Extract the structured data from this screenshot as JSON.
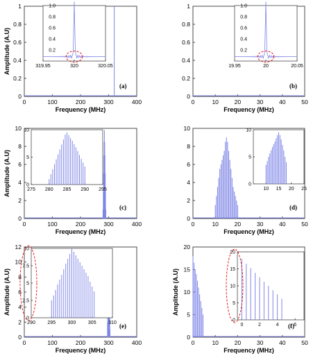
{
  "figure": {
    "colors": {
      "series": "#7f86e6",
      "annotation": "#e21b1b",
      "axis": "#4a4a4a"
    }
  },
  "chart_data": [
    {
      "panel": "(a)",
      "type": "bar",
      "xlabel": "Frequency (MHz)",
      "ylabel": "Amplitude (A.U)",
      "xlim": [
        0,
        400
      ],
      "ylim": [
        0,
        1.0
      ],
      "xticks": [
        0,
        100,
        200,
        300,
        400
      ],
      "yticks": [
        0,
        0.2,
        0.4,
        0.6,
        0.8,
        1.0
      ],
      "x": [
        320
      ],
      "values": [
        1.0
      ],
      "inset": {
        "type": "line",
        "xlim": [
          319.95,
          320.05
        ],
        "ylim": [
          0,
          1.0
        ],
        "xticks": [
          319.95,
          320,
          320.05
        ],
        "xtick_labels": [
          "319.95",
          "320",
          "320.05"
        ],
        "yticks": [
          0.2,
          0.4,
          0.6,
          0.8,
          1.0
        ],
        "ytick_labels": [
          "0.2",
          "0.4",
          "0.6",
          "0.8",
          "1.0"
        ],
        "peak_x": 320,
        "peak_value": 0.95,
        "highlight": "ellipse around peak base"
      }
    },
    {
      "panel": "(b)",
      "type": "bar",
      "xlabel": "Frequency (MHz)",
      "ylabel": "",
      "xlim": [
        0,
        50
      ],
      "ylim": [
        0,
        1.0
      ],
      "xticks": [
        0,
        10,
        20,
        30,
        40,
        50
      ],
      "yticks": [
        0,
        0.2,
        0.4,
        0.6,
        0.8,
        1.0
      ],
      "x": [],
      "values": [],
      "inset": {
        "type": "line",
        "xlim": [
          19.95,
          20.05
        ],
        "ylim": [
          0,
          1.0
        ],
        "xticks": [
          19.95,
          20,
          20.05
        ],
        "xtick_labels": [
          "19.95",
          "20",
          "20.05"
        ],
        "yticks": [
          0.2,
          0.4,
          0.6,
          0.8,
          1.0
        ],
        "ytick_labels": [
          "0.2",
          "0.4",
          "0.6",
          "0.8",
          "1.0"
        ],
        "peak_x": 20,
        "peak_value": 0.95,
        "highlight": "ellipse around peak base"
      }
    },
    {
      "panel": "(c)",
      "type": "bar",
      "xlabel": "Frequency (MHz)",
      "ylabel": "Amplitude (A.U)",
      "xlim": [
        0,
        400
      ],
      "ylim": [
        0,
        10
      ],
      "xticks": [
        0,
        100,
        200,
        300,
        400
      ],
      "yticks": [
        0,
        2,
        4,
        6,
        8,
        10
      ],
      "x": [
        280,
        281,
        282,
        283,
        284,
        285,
        286,
        287,
        288,
        289,
        290
      ],
      "values": [
        1,
        3,
        5,
        7,
        8.5,
        9.8,
        8.5,
        7,
        5,
        3,
        1
      ],
      "inset": {
        "type": "bar",
        "xlim": [
          275,
          295
        ],
        "ylim": [
          0,
          10
        ],
        "xticks": [
          275,
          280,
          285,
          290,
          295
        ],
        "xtick_labels": [
          "275",
          "280",
          "285",
          "290",
          "295"
        ],
        "yticks": [
          0,
          5,
          10
        ],
        "ytick_labels": [
          "0",
          "5",
          "10"
        ],
        "x": [
          280,
          280.5,
          281,
          281.5,
          282,
          282.5,
          283,
          283.5,
          284,
          284.5,
          285,
          285.5,
          286,
          286.5,
          287,
          287.5,
          288,
          288.5,
          289,
          289.5,
          290
        ],
        "values": [
          1.0,
          1.9,
          2.8,
          3.7,
          4.6,
          5.5,
          6.4,
          7.3,
          8.2,
          9.1,
          9.5,
          9.0,
          8.5,
          8.0,
          7.4,
          6.8,
          6.1,
          5.4,
          4.7,
          4.0,
          3.3
        ]
      }
    },
    {
      "panel": "(d)",
      "type": "bar",
      "xlabel": "Frequency (MHz)",
      "ylabel": "",
      "xlim": [
        0,
        50
      ],
      "ylim": [
        0,
        10
      ],
      "xticks": [
        0,
        10,
        20,
        30,
        40,
        50
      ],
      "yticks": [
        0,
        2,
        4,
        6,
        8,
        10
      ],
      "x": [
        10,
        10.5,
        11,
        11.5,
        12,
        12.5,
        13,
        13.5,
        14,
        14.5,
        15,
        15.5,
        16,
        16.5,
        17,
        17.5,
        18,
        18.5,
        19,
        19.5,
        20
      ],
      "values": [
        1.5,
        2.5,
        3.5,
        4.5,
        5.5,
        6.0,
        6.5,
        7.0,
        7.5,
        8.5,
        9.0,
        8.5,
        7.5,
        6.5,
        5.5,
        4.5,
        3.5,
        3.0,
        2.5,
        2.0,
        1.5
      ],
      "inset": {
        "type": "bar",
        "xlim": [
          5,
          25
        ],
        "ylim": [
          0,
          10
        ],
        "xticks": [
          10,
          15,
          20,
          25
        ],
        "xtick_labels": [
          "10",
          "15",
          "20",
          "25"
        ],
        "yticks": [
          0,
          5,
          10
        ],
        "ytick_labels": [
          "0",
          "5",
          "10"
        ],
        "x": [
          10,
          10.5,
          11,
          11.5,
          12,
          12.5,
          13,
          13.5,
          14,
          14.5,
          15,
          15.5,
          16,
          16.5,
          17,
          17.5,
          18
        ],
        "values": [
          3.5,
          4.2,
          5.0,
          5.6,
          6.2,
          6.8,
          7.3,
          7.8,
          8.4,
          9.0,
          9.5,
          9.0,
          8.2,
          7.2,
          6.2,
          5.0,
          4.0
        ]
      }
    },
    {
      "panel": "(e)",
      "type": "bar",
      "xlabel": "Frequency (MHz)",
      "ylabel": "Amplitude (A.U)",
      "xlim": [
        0,
        400
      ],
      "ylim": [
        0,
        12
      ],
      "xticks": [
        0,
        100,
        200,
        300,
        400
      ],
      "yticks": [
        0,
        2,
        4,
        6,
        8,
        10,
        12
      ],
      "x": [
        296,
        297,
        298,
        299,
        300,
        301,
        302,
        303,
        304,
        305
      ],
      "values": [
        2,
        4,
        6,
        8,
        10,
        9,
        7,
        5,
        3,
        1
      ],
      "inset": {
        "type": "bar",
        "xlim": [
          290,
          310
        ],
        "ylim": [
          0,
          10
        ],
        "xticks": [
          290,
          295,
          300,
          305,
          310
        ],
        "xtick_labels": [
          "290",
          "295",
          "300",
          "305",
          "310"
        ],
        "yticks": [
          0,
          2.5,
          5,
          7.5,
          10
        ],
        "ytick_labels": [
          "0",
          "2.5",
          "5",
          "7.5",
          "10"
        ],
        "x": [
          295,
          295.5,
          296,
          296.5,
          297,
          297.5,
          298,
          298.5,
          299,
          299.5,
          300,
          300.5,
          301,
          301.5,
          302,
          302.5,
          303,
          303.5,
          304,
          304.5,
          305,
          305.5
        ],
        "values": [
          2.5,
          3.2,
          4.0,
          4.8,
          5.5,
          6.2,
          7.0,
          7.8,
          8.5,
          9.2,
          10.0,
          9.5,
          9.0,
          8.5,
          8.0,
          7.5,
          7.0,
          6.5,
          6.0,
          5.2,
          4.5,
          3.8
        ],
        "highlight": "ellipse around left axis"
      }
    },
    {
      "panel": "(f)",
      "type": "bar",
      "xlabel": "Frequency (MHz)",
      "ylabel": "Amplitude (A.U)",
      "xlim": [
        0,
        50
      ],
      "ylim": [
        0,
        20
      ],
      "xticks": [
        0,
        10,
        20,
        30,
        40,
        50
      ],
      "yticks": [
        0,
        5,
        10,
        15,
        20
      ],
      "x": [
        0,
        0.5,
        1,
        1.5,
        2,
        2.5,
        3,
        3.5,
        4,
        4.5
      ],
      "values": [
        18,
        16.5,
        15,
        14,
        12.5,
        11,
        9.5,
        8,
        6.5,
        5
      ],
      "inset": {
        "type": "bar",
        "xlim": [
          -0.5,
          7
        ],
        "ylim": [
          0,
          20
        ],
        "xticks": [
          0,
          2,
          4,
          6
        ],
        "xtick_labels": [
          "0",
          "2",
          "4",
          "6"
        ],
        "yticks": [
          0,
          5,
          10,
          15,
          20
        ],
        "ytick_labels": [
          "0",
          "5",
          "10",
          "15",
          "20"
        ],
        "x": [
          0,
          0.5,
          1,
          1.5,
          2,
          2.5,
          3,
          3.5,
          4,
          4.5
        ],
        "values": [
          18,
          16.5,
          15.2,
          13.8,
          12.5,
          11.2,
          10.0,
          8.7,
          7.5,
          6.2
        ],
        "highlight": "ellipse around left axis"
      }
    }
  ]
}
